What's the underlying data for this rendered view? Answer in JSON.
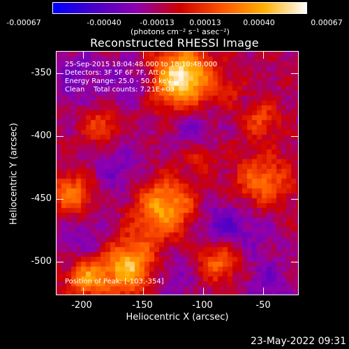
{
  "colorbar": {
    "ticks": [
      "-0.00067",
      "-0.00040",
      "-0.00013",
      "0.00013",
      "0.00040",
      "0.00067"
    ],
    "units": "(photons cm⁻² s⁻¹ asec⁻²)",
    "colors": [
      "#0000ff",
      "#4b00c8",
      "#9000b0",
      "#d00000",
      "#ff5500",
      "#ffb000",
      "#ffffff"
    ]
  },
  "plot": {
    "title": "Reconstructed RHESSI Image",
    "xlabel": "Heliocentric X (arcsec)",
    "ylabel": "Heliocentric Y (arcsec)",
    "xticks": [
      "-200",
      "-150",
      "-100",
      "-50"
    ],
    "yticks": [
      "-350",
      "-400",
      "-450",
      "-500"
    ],
    "x_range": [
      -222,
      -26
    ],
    "y_range": [
      -338,
      -526
    ]
  },
  "annotations": {
    "time_range": "25-Sep-2015 18:04:48.000 to 18:10:48.000",
    "detectors": "Detectors: 3F 5F 6F 7F, Att 0",
    "energy": "Energy Range: 25.0 - 50.0 keV",
    "method": "Clean    Total counts: 7.21E+03",
    "peak": "Position of Peak: [-103,-354]"
  },
  "footer": {
    "timestamp": "23-May-2022 09:31"
  }
}
